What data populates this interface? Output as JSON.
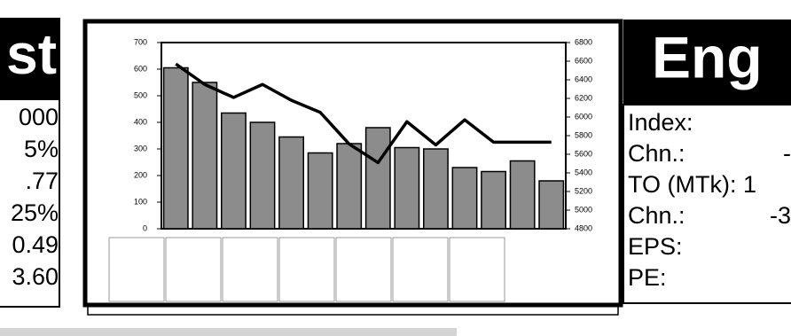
{
  "left_panel": {
    "header": "st",
    "values": [
      "000",
      "5%",
      ".77",
      "25%",
      "0.49",
      "3.60"
    ]
  },
  "right_panel": {
    "header": "Eng",
    "labels": [
      "Index:",
      "Chn.:",
      "TO (MTk): 1",
      "Chn.:",
      "EPS:",
      "PE:"
    ],
    "values": [
      "-",
      "-3"
    ]
  },
  "chart_data": {
    "type": "bar",
    "categories": [
      null,
      null,
      null,
      null,
      null,
      null,
      null,
      null,
      null,
      null,
      null,
      null,
      null,
      null
    ],
    "series": [
      {
        "name": null,
        "type": "bar",
        "color": "#8c8c8c",
        "values": [
          605,
          550,
          435,
          400,
          345,
          285,
          320,
          380,
          305,
          300,
          230,
          215,
          255,
          180
        ]
      },
      {
        "name": null,
        "type": "line",
        "axis": "y2",
        "color": "#000000",
        "values": [
          6570,
          6350,
          6210,
          6350,
          6180,
          6050,
          5710,
          5510,
          5950,
          5700,
          5970,
          5730,
          5730,
          5730
        ]
      }
    ],
    "ylim": [
      0,
      700
    ],
    "yticks": [
      0,
      100,
      200,
      300,
      400,
      500,
      600,
      700
    ],
    "y2lim": [
      4800,
      6800
    ],
    "y2ticks": [
      4800,
      5000,
      5200,
      5400,
      5600,
      5800,
      6000,
      6200,
      6400,
      6600,
      6800
    ]
  }
}
